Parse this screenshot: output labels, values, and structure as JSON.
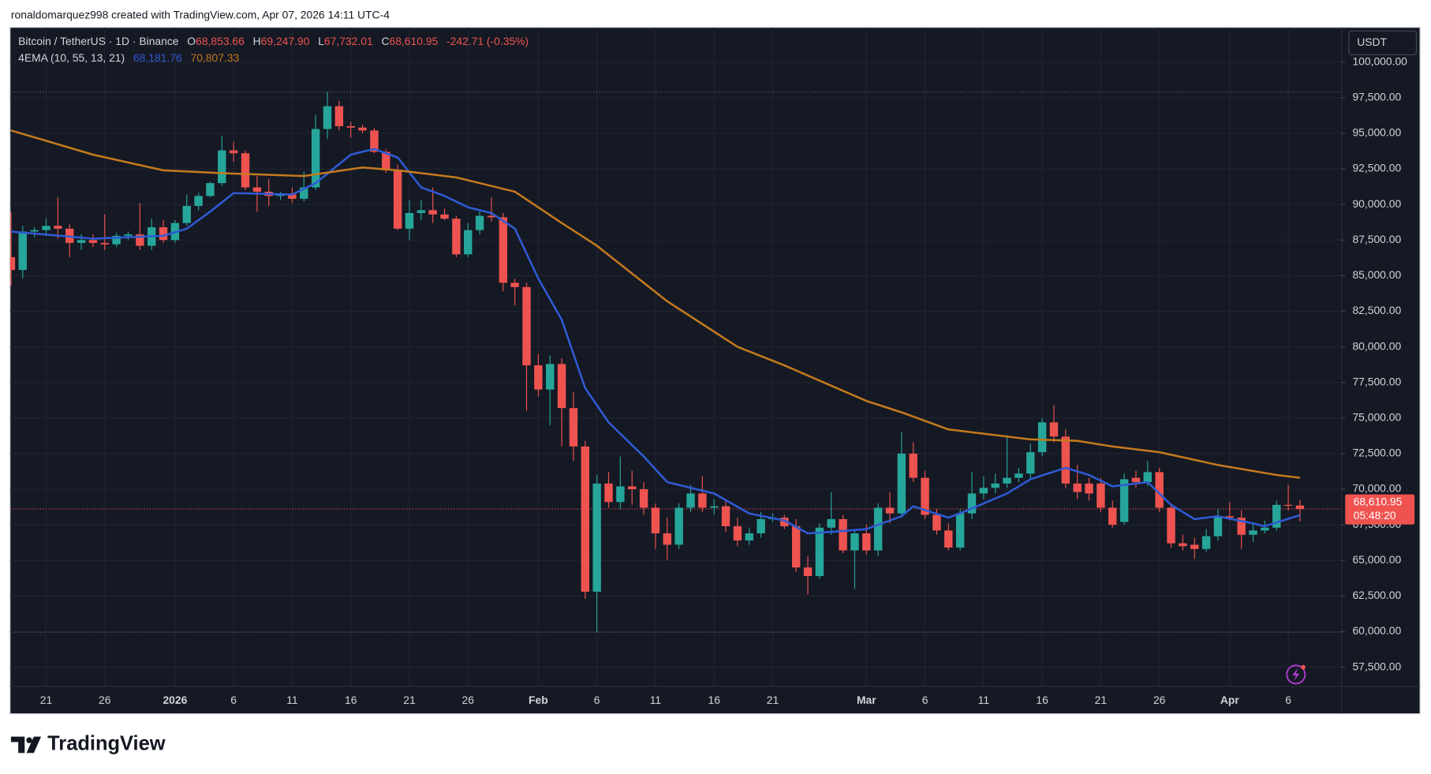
{
  "header": {
    "attribution": "ronaldomarquez998 created with TradingView.com, Apr 07, 2026 14:11 UTC-4"
  },
  "legend": {
    "symbol": "Bitcoin / TetherUS · 1D · Binance",
    "ohlc": [
      {
        "key": "O",
        "text": "68,853.66"
      },
      {
        "key": "H",
        "text": "69,247.90"
      },
      {
        "key": "L",
        "text": "67,732.01"
      },
      {
        "key": "C",
        "text": "68,610.95"
      }
    ],
    "change": "-242.71 (-0.35%)",
    "indicator": "4EMA (10, 55, 13, 21)",
    "indicator_values": [
      "68,181.76",
      "70,807.33"
    ]
  },
  "currency": "USDT",
  "chart_data": {
    "type": "candlestick",
    "up_color": "#26a69a",
    "down_color": "#ef5350",
    "x": [
      "2025-12-18",
      "2025-12-19",
      "2025-12-20",
      "2025-12-21",
      "2025-12-22",
      "2025-12-23",
      "2025-12-24",
      "2025-12-25",
      "2025-12-26",
      "2025-12-27",
      "2025-12-28",
      "2025-12-29",
      "2025-12-30",
      "2025-12-31",
      "2026-01-01",
      "2026-01-02",
      "2026-01-03",
      "2026-01-04",
      "2026-01-05",
      "2026-01-06",
      "2026-01-07",
      "2026-01-08",
      "2026-01-09",
      "2026-01-10",
      "2026-01-11",
      "2026-01-12",
      "2026-01-13",
      "2026-01-14",
      "2026-01-15",
      "2026-01-16",
      "2026-01-17",
      "2026-01-18",
      "2026-01-19",
      "2026-01-20",
      "2026-01-21",
      "2026-01-22",
      "2026-01-23",
      "2026-01-24",
      "2026-01-25",
      "2026-01-26",
      "2026-01-27",
      "2026-01-28",
      "2026-01-29",
      "2026-01-30",
      "2026-01-31",
      "2026-02-01",
      "2026-02-02",
      "2026-02-03",
      "2026-02-04",
      "2026-02-05",
      "2026-02-06",
      "2026-02-07",
      "2026-02-08",
      "2026-02-09",
      "2026-02-10",
      "2026-02-11",
      "2026-02-12",
      "2026-02-13",
      "2026-02-14",
      "2026-02-15",
      "2026-02-16",
      "2026-02-17",
      "2026-02-18",
      "2026-02-19",
      "2026-02-20",
      "2026-02-21",
      "2026-02-22",
      "2026-02-23",
      "2026-02-24",
      "2026-02-25",
      "2026-02-26",
      "2026-02-27",
      "2026-02-28",
      "2026-03-01",
      "2026-03-02",
      "2026-03-03",
      "2026-03-04",
      "2026-03-05",
      "2026-03-06",
      "2026-03-07",
      "2026-03-08",
      "2026-03-09",
      "2026-03-10",
      "2026-03-11",
      "2026-03-12",
      "2026-03-13",
      "2026-03-14",
      "2026-03-15",
      "2026-03-16",
      "2026-03-17",
      "2026-03-18",
      "2026-03-19",
      "2026-03-20",
      "2026-03-21",
      "2026-03-22",
      "2026-03-23",
      "2026-03-24",
      "2026-03-25",
      "2026-03-26",
      "2026-03-27",
      "2026-03-28",
      "2026-03-29",
      "2026-03-30",
      "2026-03-31",
      "2026-04-01",
      "2026-04-02",
      "2026-04-03",
      "2026-04-04",
      "2026-04-05",
      "2026-04-06",
      "2026-04-07"
    ],
    "open": [
      86300,
      85400,
      88100,
      88200,
      88500,
      88300,
      87300,
      87500,
      87300,
      87200,
      87800,
      87900,
      87100,
      88400,
      87500,
      88700,
      89900,
      90600,
      91500,
      93800,
      93600,
      91200,
      90900,
      90600,
      90700,
      90400,
      91200,
      95300,
      96900,
      95500,
      95400,
      95200,
      93700,
      92400,
      88300,
      89400,
      89600,
      89300,
      89000,
      86500,
      88200,
      89200,
      89100,
      84500,
      84200,
      78700,
      77000,
      78800,
      75700,
      73000,
      62800,
      70400,
      69100,
      70200,
      70000,
      68700,
      66900,
      66100,
      68700,
      69700,
      68700,
      68800,
      67400,
      66400,
      66900,
      67900,
      68000,
      67400,
      64500,
      63900,
      67300,
      67900,
      65700,
      66900,
      65700,
      68700,
      68300,
      72500,
      70800,
      68200,
      67100,
      65900,
      68300,
      69700,
      70100,
      70400,
      70800,
      71100,
      72600,
      74700,
      73700,
      70400,
      70400,
      70400,
      68700,
      67700,
      70800,
      70500,
      71200,
      68700,
      66200,
      66100,
      65800,
      66700,
      68100,
      68000,
      66800,
      67100,
      67300,
      68900,
      68853.66
    ],
    "high": [
      89500,
      88500,
      88400,
      89000,
      90500,
      88600,
      87900,
      87900,
      89300,
      88000,
      88100,
      90100,
      89000,
      88900,
      88900,
      90700,
      90800,
      91600,
      94800,
      94400,
      93800,
      92000,
      91800,
      90900,
      91200,
      92300,
      96300,
      97900,
      97300,
      95800,
      95600,
      95400,
      93900,
      92800,
      90300,
      90300,
      91200,
      89700,
      89200,
      88700,
      89500,
      90500,
      89400,
      84800,
      84500,
      79500,
      79400,
      79200,
      76800,
      73400,
      71000,
      71200,
      72300,
      71300,
      70500,
      69000,
      68000,
      69000,
      70300,
      70900,
      69300,
      69200,
      68000,
      67300,
      68400,
      68300,
      68200,
      67900,
      65300,
      67600,
      69800,
      68200,
      67200,
      67500,
      69000,
      69800,
      74000,
      73300,
      71300,
      68600,
      67600,
      68600,
      71200,
      70900,
      71100,
      73800,
      71500,
      73200,
      75000,
      75900,
      74200,
      71700,
      70800,
      70800,
      69200,
      71100,
      71300,
      72000,
      71500,
      69000,
      66800,
      66600,
      67200,
      68600,
      69100,
      68500,
      67600,
      67800,
      69200,
      70300,
      69247.9
    ],
    "low": [
      84300,
      84800,
      87700,
      87800,
      87600,
      86300,
      86800,
      87000,
      86800,
      87000,
      87500,
      86800,
      86800,
      87300,
      87300,
      88500,
      89600,
      90500,
      91300,
      93000,
      91000,
      89500,
      89900,
      90300,
      90100,
      90200,
      91000,
      94600,
      95200,
      94700,
      95000,
      93600,
      92200,
      88200,
      87500,
      88900,
      88700,
      88900,
      86300,
      86300,
      87900,
      88800,
      83900,
      82900,
      75500,
      76500,
      74500,
      73000,
      72000,
      62300,
      59950,
      68700,
      68600,
      68900,
      68200,
      65800,
      65000,
      65800,
      68400,
      68400,
      68200,
      67000,
      66000,
      66100,
      66600,
      67700,
      67200,
      64200,
      62600,
      63700,
      66800,
      65500,
      63000,
      65400,
      65300,
      67600,
      68000,
      70500,
      67900,
      66800,
      65700,
      65700,
      67900,
      69300,
      69700,
      70100,
      70500,
      70700,
      72300,
      73300,
      70100,
      69300,
      69200,
      68400,
      67300,
      67500,
      70100,
      70200,
      68400,
      65900,
      65700,
      65100,
      65600,
      66400,
      67800,
      65800,
      66300,
      66900,
      67100,
      68500,
      67732.01
    ],
    "close": [
      85400,
      88100,
      88200,
      88500,
      88300,
      87300,
      87500,
      87300,
      87200,
      87800,
      87900,
      87100,
      88400,
      87500,
      88700,
      89900,
      90600,
      91500,
      93800,
      93600,
      91200,
      90900,
      90600,
      90700,
      90400,
      91200,
      95300,
      96900,
      95500,
      95400,
      95200,
      93700,
      92400,
      88300,
      89400,
      89600,
      89300,
      89000,
      86500,
      88200,
      89200,
      89100,
      84500,
      84200,
      78700,
      77000,
      78800,
      75700,
      73000,
      62800,
      70400,
      69100,
      70200,
      70000,
      68700,
      66900,
      66100,
      68700,
      69700,
      68700,
      68800,
      67400,
      66400,
      66900,
      67900,
      68000,
      67400,
      64500,
      63900,
      67300,
      67900,
      65700,
      66900,
      65700,
      68700,
      68300,
      72500,
      70800,
      68200,
      67100,
      65900,
      68300,
      69700,
      70100,
      70400,
      70800,
      71100,
      72600,
      74700,
      73700,
      70400,
      69800,
      69700,
      68700,
      67500,
      70700,
      70500,
      71200,
      68700,
      66200,
      66000,
      65800,
      66700,
      68100,
      68000,
      66800,
      67100,
      67300,
      68900,
      68850,
      68610.95
    ],
    "lines": [
      {
        "color": "#2f5bd4",
        "x": [
          "2025-12-18",
          "2025-12-25",
          "2025-12-31",
          "2026-01-02",
          "2026-01-04",
          "2026-01-06",
          "2026-01-11",
          "2026-01-13",
          "2026-01-16",
          "2026-01-18",
          "2026-01-20",
          "2026-01-22",
          "2026-01-24",
          "2026-01-26",
          "2026-01-28",
          "2026-01-30",
          "2026-02-01",
          "2026-02-03",
          "2026-02-05",
          "2026-02-07",
          "2026-02-10",
          "2026-02-12",
          "2026-02-16",
          "2026-02-19",
          "2026-02-22",
          "2026-02-24",
          "2026-02-26",
          "2026-03-01",
          "2026-03-04",
          "2026-03-05",
          "2026-03-08",
          "2026-03-09",
          "2026-03-13",
          "2026-03-15",
          "2026-03-18",
          "2026-03-20",
          "2026-03-22",
          "2026-03-25",
          "2026-03-27",
          "2026-03-29",
          "2026-03-31",
          "2026-04-03",
          "2026-04-04",
          "2026-04-07"
        ],
        "values": [
          88100,
          87600,
          87800,
          88300,
          89500,
          90800,
          90700,
          91500,
          93500,
          93900,
          93300,
          91200,
          90600,
          89800,
          89400,
          88300,
          84800,
          81900,
          77100,
          74700,
          72300,
          70500,
          69700,
          68300,
          67800,
          66900,
          67000,
          67200,
          68100,
          68800,
          68000,
          68300,
          69700,
          70700,
          71500,
          71000,
          70200,
          70500,
          68900,
          67900,
          68100,
          67600,
          67400,
          68181.76
        ]
      },
      {
        "color": "#c47a1d",
        "x": [
          "2025-12-18",
          "2025-12-25",
          "2025-12-31",
          "2026-01-05",
          "2026-01-12",
          "2026-01-17",
          "2026-01-20",
          "2026-01-25",
          "2026-01-30",
          "2026-02-03",
          "2026-02-06",
          "2026-02-12",
          "2026-02-18",
          "2026-02-22",
          "2026-03-01",
          "2026-03-04",
          "2026-03-08",
          "2026-03-15",
          "2026-03-19",
          "2026-03-22",
          "2026-03-26",
          "2026-03-31",
          "2026-04-05",
          "2026-04-07"
        ],
        "values": [
          95200,
          93500,
          92400,
          92200,
          92000,
          92600,
          92400,
          91900,
          90900,
          88700,
          87100,
          83200,
          80000,
          78700,
          76200,
          75400,
          74200,
          73500,
          73400,
          73000,
          72600,
          71700,
          71000,
          70807.33
        ]
      }
    ],
    "xlim": [
      "2025-12-18",
      "2026-04-10"
    ],
    "xticks": [
      {
        "value": "2025-12-21",
        "label": "21"
      },
      {
        "value": "2025-12-26",
        "label": "26"
      },
      {
        "value": "2026-01-01",
        "label": "2026"
      },
      {
        "value": "2026-01-06",
        "label": "6"
      },
      {
        "value": "2026-01-11",
        "label": "11"
      },
      {
        "value": "2026-01-16",
        "label": "16"
      },
      {
        "value": "2026-01-21",
        "label": "21"
      },
      {
        "value": "2026-01-26",
        "label": "26"
      },
      {
        "value": "2026-02-01",
        "label": "Feb"
      },
      {
        "value": "2026-02-06",
        "label": "6"
      },
      {
        "value": "2026-02-11",
        "label": "11"
      },
      {
        "value": "2026-02-16",
        "label": "16"
      },
      {
        "value": "2026-02-21",
        "label": "21"
      },
      {
        "value": "2026-03-01",
        "label": "Mar"
      },
      {
        "value": "2026-03-06",
        "label": "6"
      },
      {
        "value": "2026-03-11",
        "label": "11"
      },
      {
        "value": "2026-03-16",
        "label": "16"
      },
      {
        "value": "2026-03-21",
        "label": "21"
      },
      {
        "value": "2026-03-26",
        "label": "26"
      },
      {
        "value": "2026-04-01",
        "label": "Apr"
      },
      {
        "value": "2026-04-06",
        "label": "6"
      }
    ],
    "ylim": [
      56150,
      102440
    ],
    "yticks": [
      {
        "value": 57500,
        "label": "57,500.00"
      },
      {
        "value": 60000,
        "label": "60,000.00"
      },
      {
        "value": 62500,
        "label": "62,500.00"
      },
      {
        "value": 65000,
        "label": "65,000.00"
      },
      {
        "value": 67500,
        "label": "67,500.00"
      },
      {
        "value": 70000,
        "label": "70,000.00"
      },
      {
        "value": 72500,
        "label": "72,500.00"
      },
      {
        "value": 75000,
        "label": "75,000.00"
      },
      {
        "value": 77500,
        "label": "77,500.00"
      },
      {
        "value": 80000,
        "label": "80,000.00"
      },
      {
        "value": 82500,
        "label": "82,500.00"
      },
      {
        "value": 85000,
        "label": "85,000.00"
      },
      {
        "value": 87500,
        "label": "87,500.00"
      },
      {
        "value": 90000,
        "label": "90,000.00"
      },
      {
        "value": 92500,
        "label": "92,500.00"
      },
      {
        "value": 95000,
        "label": "95,000.00"
      },
      {
        "value": 97500,
        "label": "97,500.00"
      },
      {
        "value": 100000,
        "label": "100,000.00"
      }
    ],
    "grid": true,
    "last_price": {
      "value": 68610.95,
      "label": "68,610.95"
    },
    "countdown": "05:48:20"
  },
  "footer": {
    "brand": "TradingView"
  }
}
